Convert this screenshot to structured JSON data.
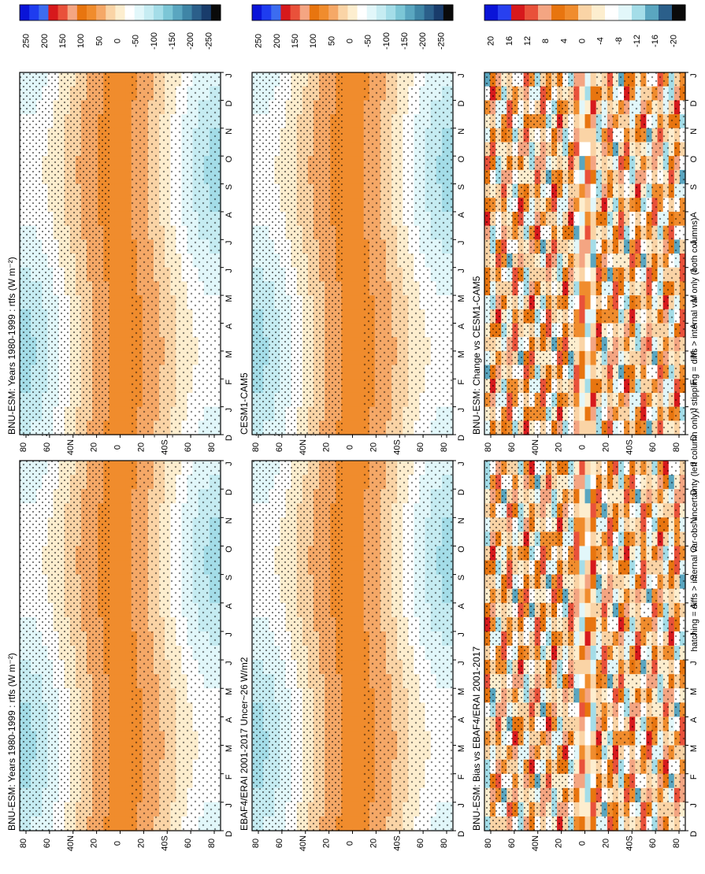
{
  "figure": {
    "footnote": "hatching = diffs > internal var-obs uncertainty (left column only); stippling = diffs > internal var only (both columns)"
  },
  "colors": {
    "main_scale": [
      "#0a14d8",
      "#1e3cf0",
      "#3c6cf0",
      "#d7191c",
      "#e9513a",
      "#f4a582",
      "#e8750f",
      "#f08c2d",
      "#f5a867",
      "#fad4a6",
      "#fdeecf",
      "#ffffff",
      "#e2f7fa",
      "#c6ecf2",
      "#a4dde8",
      "#7cc6d6",
      "#5aa6c0",
      "#3f85a6",
      "#2b5f8a",
      "#193c6b",
      "#0a0a0a"
    ],
    "diff_scale": [
      "#0a14d8",
      "#2840f0",
      "#d7191c",
      "#e9513a",
      "#f4a582",
      "#e8750f",
      "#f08c2d",
      "#fad4a6",
      "#fdeecf",
      "#ffffff",
      "#e2f7fa",
      "#a4dde8",
      "#5aa6c0",
      "#2b5f8a",
      "#0a0a0a"
    ],
    "stipple": "#000000",
    "axis": "#000000"
  },
  "chart_data": [
    {
      "type": "heatmap",
      "panel": "top-left",
      "title": "BNU-ESM: Years 1980-1999 : rtfs (W m⁻²)",
      "x_ticks": [
        "D",
        "J",
        "F",
        "M",
        "A",
        "M",
        "J",
        "J",
        "A",
        "S",
        "O",
        "N",
        "D",
        "J"
      ],
      "y_ticks": [
        "80",
        "60",
        "40N",
        "20",
        "0",
        "20",
        "40S",
        "60",
        "80"
      ],
      "ylim": [
        -90,
        90
      ],
      "colorbar": [
        "250",
        "200",
        "150",
        "100",
        "50",
        "0",
        "-50",
        "-100",
        "-150",
        "-200",
        "-250"
      ]
    },
    {
      "type": "heatmap",
      "panel": "top-right",
      "title": "BNU-ESM: Years 1980-1999 : rtfs (W m⁻²)",
      "x_ticks": [
        "D",
        "J",
        "F",
        "M",
        "A",
        "M",
        "J",
        "J",
        "A",
        "S",
        "O",
        "N",
        "D",
        "J"
      ],
      "y_ticks": [
        "80",
        "60",
        "40N",
        "20",
        "0",
        "20",
        "40S",
        "60",
        "80"
      ],
      "ylim": [
        -90,
        90
      ],
      "colorbar": [
        "250",
        "200",
        "150",
        "100",
        "50",
        "0",
        "-50",
        "-100",
        "-150",
        "-200",
        "-250"
      ]
    },
    {
      "type": "heatmap",
      "panel": "middle-left",
      "title": "EBAF4/ERAI 2001-2017 Uncer~26 W/m2",
      "x_ticks": [
        "D",
        "J",
        "F",
        "M",
        "A",
        "M",
        "J",
        "J",
        "A",
        "S",
        "O",
        "N",
        "D",
        "J"
      ],
      "y_ticks": [
        "80",
        "60",
        "40N",
        "20",
        "0",
        "20",
        "40S",
        "60",
        "80"
      ],
      "ylim": [
        -90,
        90
      ],
      "colorbar": [
        "250",
        "200",
        "150",
        "100",
        "50",
        "0",
        "-50",
        "-100",
        "-150",
        "-200",
        "-250"
      ]
    },
    {
      "type": "heatmap",
      "panel": "middle-right",
      "title": "CESM1-CAM5",
      "x_ticks": [
        "D",
        "J",
        "F",
        "M",
        "A",
        "M",
        "J",
        "J",
        "A",
        "S",
        "O",
        "N",
        "D",
        "J"
      ],
      "y_ticks": [
        "80",
        "60",
        "40N",
        "20",
        "0",
        "20",
        "40S",
        "60",
        "80"
      ],
      "ylim": [
        -90,
        90
      ],
      "colorbar": [
        "250",
        "200",
        "150",
        "100",
        "50",
        "0",
        "-50",
        "-100",
        "-150",
        "-200",
        "-250"
      ]
    },
    {
      "type": "heatmap",
      "panel": "bottom-left",
      "title": "BNU-ESM: Bias vs EBAF4/ERAI 2001-2017",
      "x_ticks": [
        "D",
        "J",
        "F",
        "M",
        "A",
        "M",
        "J",
        "J",
        "A",
        "S",
        "O",
        "N",
        "D",
        "J"
      ],
      "y_ticks": [
        "80",
        "60",
        "40N",
        "20",
        "0",
        "20",
        "40S",
        "60",
        "80"
      ],
      "ylim": [
        -90,
        90
      ],
      "colorbar": [
        "20",
        "16",
        "12",
        "8",
        "4",
        "0",
        "-4",
        "-8",
        "-12",
        "-16",
        "-20"
      ]
    },
    {
      "type": "heatmap",
      "panel": "bottom-right",
      "title": "BNU-ESM: Change vs CESM1-CAM5",
      "x_ticks": [
        "D",
        "J",
        "F",
        "M",
        "A",
        "M",
        "J",
        "J",
        "A",
        "S",
        "O",
        "N",
        "D",
        "J"
      ],
      "y_ticks": [
        "80",
        "60",
        "40N",
        "20",
        "0",
        "20",
        "40S",
        "60",
        "80"
      ],
      "ylim": [
        -90,
        90
      ],
      "colorbar": [
        "20",
        "16",
        "12",
        "8",
        "4",
        "0",
        "-4",
        "-8",
        "-12",
        "-16",
        "-20"
      ]
    }
  ]
}
